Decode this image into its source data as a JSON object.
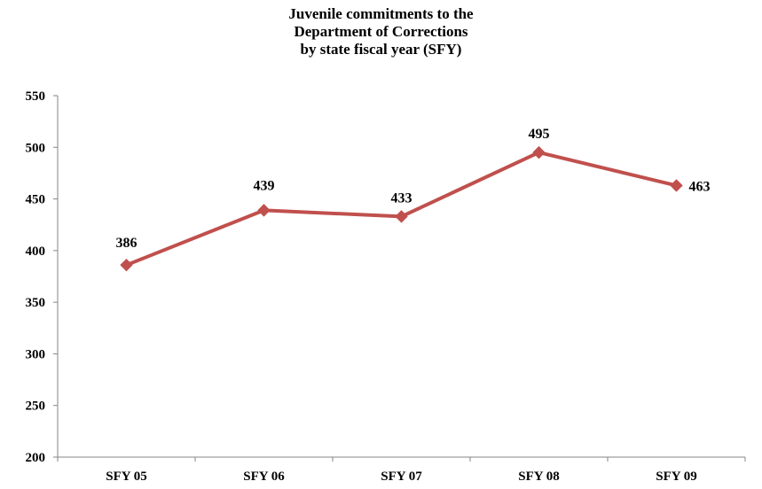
{
  "chart_data": {
    "type": "line",
    "title_lines": [
      "Juvenile commitments to the",
      "Department of Corrections",
      "by state fiscal year (SFY)"
    ],
    "categories": [
      "SFY 05",
      "SFY 06",
      "SFY 07",
      "SFY 08",
      "SFY 09"
    ],
    "series": [
      {
        "values": [
          386,
          439,
          433,
          495,
          463
        ]
      }
    ],
    "ylim": [
      200,
      550
    ],
    "yticks": [
      200,
      250,
      300,
      350,
      400,
      450,
      500,
      550
    ],
    "grid": false,
    "legend": "none",
    "line_color": "#C0504D",
    "marker": "diamond"
  }
}
